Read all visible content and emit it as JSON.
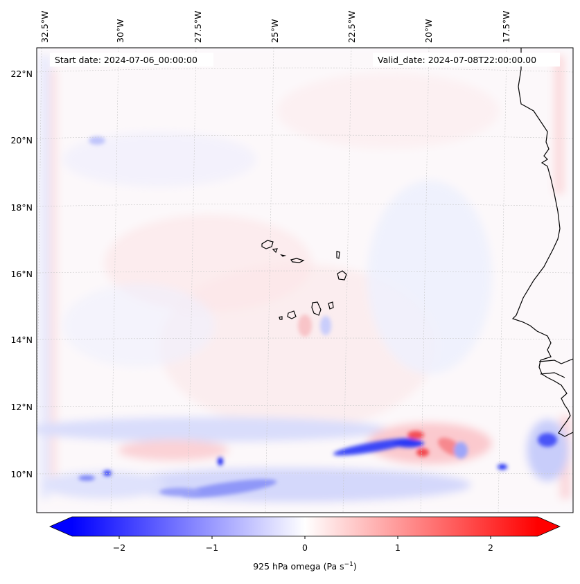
{
  "map": {
    "start_date": "Start date: 2024-07-06_00:00:00",
    "valid_date": "Valid_date: 2024-07-08T22:00:00.00",
    "lon_labels": [
      "32.5°W",
      "30°W",
      "27.5°W",
      "25°W",
      "22.5°W",
      "20°W",
      "17.5°W"
    ],
    "lat_labels": [
      "22°N",
      "20°N",
      "18°N",
      "16°N",
      "14°N",
      "12°N",
      "10°N"
    ]
  },
  "colorbar": {
    "ticks": [
      "−2",
      "−1",
      "0",
      "1",
      "2"
    ],
    "label_main": "925 hPa omega (Pa s",
    "label_sup": "−1",
    "label_end": ")",
    "neg_color": "#0000ff",
    "pos_color": "#ff0000",
    "range": [
      -2.6,
      2.6
    ]
  }
}
